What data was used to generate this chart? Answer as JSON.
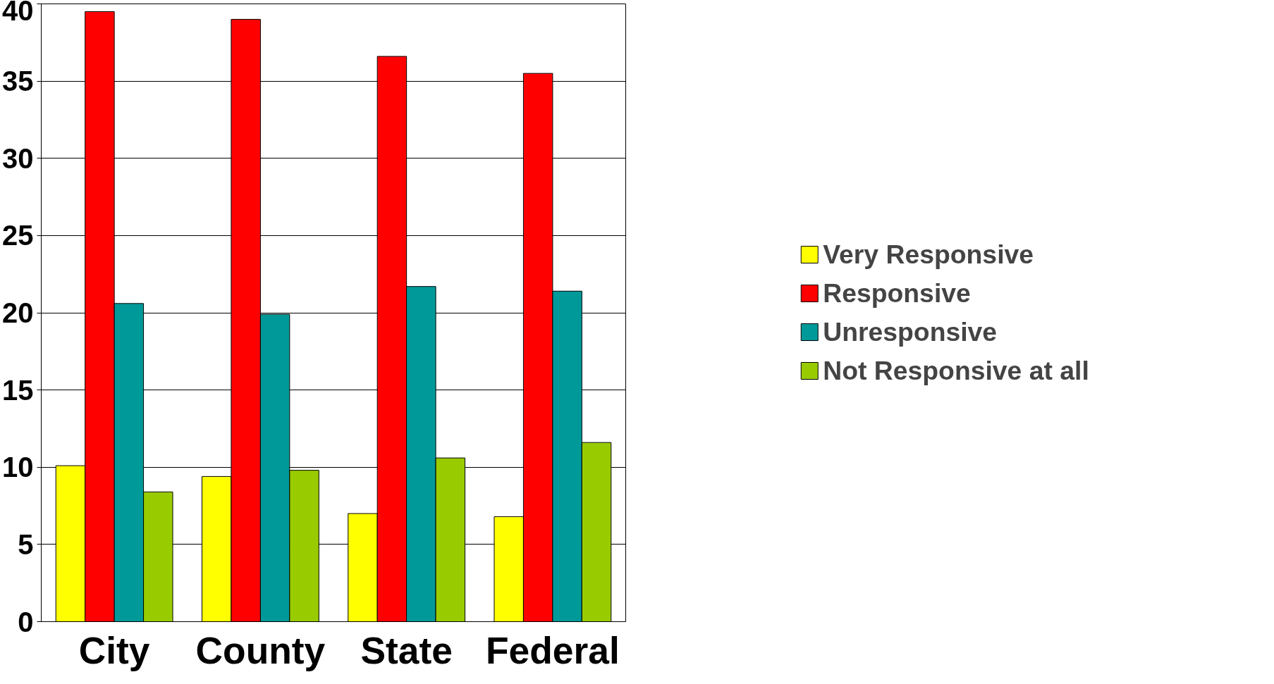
{
  "chart_data": {
    "type": "bar",
    "categories": [
      "City",
      "County",
      "State",
      "Federal"
    ],
    "series": [
      {
        "name": "Very Responsive",
        "color": "#ffff00",
        "values": [
          10.1,
          9.4,
          7.0,
          6.8
        ]
      },
      {
        "name": "Responsive",
        "color": "#ff0000",
        "values": [
          39.5,
          39.0,
          36.6,
          35.5
        ]
      },
      {
        "name": "Unresponsive",
        "color": "#009999",
        "values": [
          20.6,
          19.9,
          21.7,
          21.4
        ]
      },
      {
        "name": "Not Responsive at all",
        "color": "#99cc00",
        "values": [
          8.4,
          9.8,
          10.6,
          11.6
        ]
      }
    ],
    "ylim": [
      0,
      40
    ],
    "yticks": [
      0,
      5,
      10,
      15,
      20,
      25,
      30,
      35,
      40
    ],
    "grid": "y",
    "legend": "right"
  }
}
